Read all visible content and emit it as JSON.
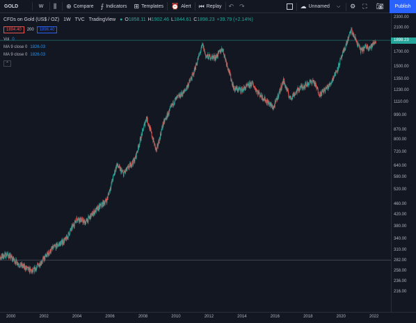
{
  "toolbar": {
    "symbol": "GOLD",
    "interval": "W",
    "compare": "Compare",
    "indicators": "Indicators",
    "templates": "Templates",
    "alert": "Alert",
    "replay": "Replay",
    "layout_name": "Unnamed",
    "publish": "Publish"
  },
  "legend": {
    "title": "CFDs on Gold (US$ / OZ)",
    "interval": "1W",
    "source": "TVC",
    "exchange": "TradingView",
    "open_k": "O",
    "open": "1858.11",
    "high_k": "H",
    "high": "1902.46",
    "low_k": "L",
    "low": "1844.61",
    "close_k": "C",
    "close": "1898.23",
    "change": "+39.79 (+2.14%)",
    "bid": "1894.40",
    "spread": "200",
    "ask": "1896.40",
    "vol_label": "Vol",
    "vol_value": "0",
    "ma1_label": "MA 9 close 0",
    "ma1_value": "1826.03",
    "ma2_label": "MA 9 close 0",
    "ma2_value": "1826.03"
  },
  "price_axis": [
    "2300.00",
    "2100.00",
    "1898.23",
    "1700.00",
    "1500.00",
    "1350.00",
    "1230.00",
    "1110.00",
    "990.00",
    "870.00",
    "800.00",
    "720.00",
    "640.00",
    "580.00",
    "520.00",
    "460.00",
    "420.00",
    "380.00",
    "340.00",
    "310.00",
    "282.00",
    "258.00",
    "236.00",
    "216.00"
  ],
  "current_price": "1898.23",
  "colors": {
    "up": "#26a69a",
    "down": "#ef5350",
    "background": "#131722",
    "accent": "#2962ff"
  },
  "chart_data": {
    "type": "candlestick",
    "x_ticks": [
      "2000",
      "2002",
      "2004",
      "2006",
      "2008",
      "2010",
      "2012",
      "2014",
      "2016",
      "2018",
      "2020",
      "2022"
    ],
    "y_scale": "log",
    "ylim": [
      210,
      2400
    ],
    "current_price": 1898.23,
    "series_keypoints": [
      [
        1999.0,
        285
      ],
      [
        1999.75,
        300
      ],
      [
        2000.5,
        275
      ],
      [
        2001.3,
        258
      ],
      [
        2001.8,
        280
      ],
      [
        2002.5,
        315
      ],
      [
        2003.3,
        340
      ],
      [
        2004.0,
        410
      ],
      [
        2004.5,
        395
      ],
      [
        2005.0,
        430
      ],
      [
        2005.8,
        480
      ],
      [
        2006.4,
        650
      ],
      [
        2006.8,
        600
      ],
      [
        2007.5,
        680
      ],
      [
        2008.2,
        980
      ],
      [
        2008.8,
        730
      ],
      [
        2009.2,
        920
      ],
      [
        2009.9,
        1130
      ],
      [
        2010.5,
        1220
      ],
      [
        2011.0,
        1400
      ],
      [
        2011.6,
        1830
      ],
      [
        2011.8,
        1650
      ],
      [
        2012.4,
        1640
      ],
      [
        2012.8,
        1770
      ],
      [
        2013.5,
        1250
      ],
      [
        2014.0,
        1240
      ],
      [
        2014.6,
        1310
      ],
      [
        2015.0,
        1200
      ],
      [
        2015.9,
        1060
      ],
      [
        2016.5,
        1340
      ],
      [
        2016.9,
        1150
      ],
      [
        2017.5,
        1260
      ],
      [
        2018.3,
        1340
      ],
      [
        2018.7,
        1190
      ],
      [
        2019.3,
        1290
      ],
      [
        2019.8,
        1500
      ],
      [
        2020.6,
        2070
      ],
      [
        2021.2,
        1730
      ],
      [
        2021.5,
        1800
      ],
      [
        2021.8,
        1790
      ],
      [
        2022.1,
        1898
      ]
    ],
    "h_lines": [
      1898.23,
      285
    ]
  }
}
